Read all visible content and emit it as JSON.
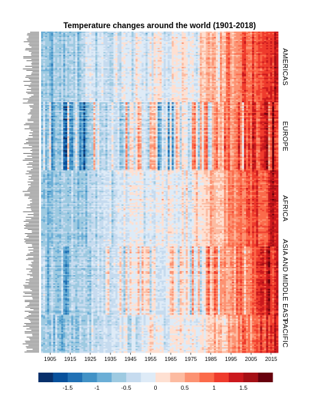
{
  "chart_data": {
    "type": "heatmap",
    "title": "Temperature changes around the world (1901-2018)",
    "x_start": 1901,
    "x_end": 2018,
    "x_ticks": [
      1905,
      1915,
      1925,
      1935,
      1945,
      1955,
      1965,
      1975,
      1985,
      1995,
      2005,
      2015
    ],
    "x_tick_labels": [
      "1905",
      "1915",
      "1925",
      "1935",
      "1945",
      "1955",
      "1965",
      "1975",
      "1985",
      "1995",
      "2005",
      "2015"
    ],
    "regions": [
      {
        "name": "AMERICAS",
        "rows": 52,
        "variability": 0.35
      },
      {
        "name": "EUROPE",
        "rows": 50,
        "variability": 0.75
      },
      {
        "name": "AFRICA",
        "rows": 56,
        "variability": 0.25
      },
      {
        "name": "ASIA AND MIDDLE EAST",
        "rows": 50,
        "variability": 0.55
      },
      {
        "name": "PACIFIC",
        "rows": 28,
        "variability": 0.4
      }
    ],
    "value_range": [
      -2,
      2
    ],
    "colorbar": {
      "bins": 16,
      "colors": [
        "#08306b",
        "#08519c",
        "#2171b5",
        "#4292c6",
        "#6baed6",
        "#9ecae1",
        "#c6dbef",
        "#deebf7",
        "#fee0d2",
        "#fcbba1",
        "#fc9272",
        "#fb6a4a",
        "#ef3b2c",
        "#cb181d",
        "#a50f15",
        "#67000d"
      ],
      "ticks": [
        -1.5,
        -1,
        -0.5,
        0,
        0.5,
        1,
        1.5
      ],
      "tick_labels": [
        "-1.5",
        "-1",
        "-0.5",
        "0",
        "0.5",
        "1",
        "1.5"
      ]
    },
    "row_labels_visible": false,
    "grid": false,
    "colorbar_position": "bottom"
  }
}
